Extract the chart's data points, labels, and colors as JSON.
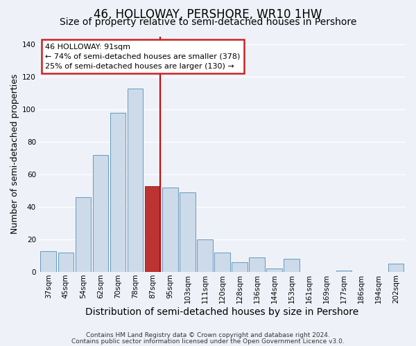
{
  "title": "46, HOLLOWAY, PERSHORE, WR10 1HW",
  "subtitle": "Size of property relative to semi-detached houses in Pershore",
  "xlabel": "Distribution of semi-detached houses by size in Pershore",
  "ylabel": "Number of semi-detached properties",
  "categories": [
    "37sqm",
    "45sqm",
    "54sqm",
    "62sqm",
    "70sqm",
    "78sqm",
    "87sqm",
    "95sqm",
    "103sqm",
    "111sqm",
    "120sqm",
    "128sqm",
    "136sqm",
    "144sqm",
    "153sqm",
    "161sqm",
    "169sqm",
    "177sqm",
    "186sqm",
    "194sqm",
    "202sqm"
  ],
  "values": [
    13,
    12,
    46,
    72,
    98,
    113,
    53,
    52,
    49,
    20,
    12,
    6,
    9,
    2,
    8,
    0,
    0,
    1,
    0,
    0,
    5
  ],
  "bar_color": "#cddaea",
  "bar_edge_color": "#6699bb",
  "highlight_bar_index": 6,
  "highlight_bar_color": "#bb3333",
  "highlight_bar_edge": "#aa2222",
  "highlight_line_color": "#cc0000",
  "annotation_title": "46 HOLLOWAY: 91sqm",
  "annotation_line1": "← 74% of semi-detached houses are smaller (378)",
  "annotation_line2": "25% of semi-detached houses are larger (130) →",
  "annotation_box_color": "#ffffff",
  "annotation_box_edge": "#cc2222",
  "ylim": [
    0,
    145
  ],
  "yticks": [
    0,
    20,
    40,
    60,
    80,
    100,
    120,
    140
  ],
  "footer1": "Contains HM Land Registry data © Crown copyright and database right 2024.",
  "footer2": "Contains public sector information licensed under the Open Government Licence v3.0.",
  "background_color": "#eef2f8",
  "title_fontsize": 12,
  "subtitle_fontsize": 10,
  "xlabel_fontsize": 10,
  "ylabel_fontsize": 9,
  "tick_fontsize": 7.5,
  "footer_fontsize": 6.5
}
